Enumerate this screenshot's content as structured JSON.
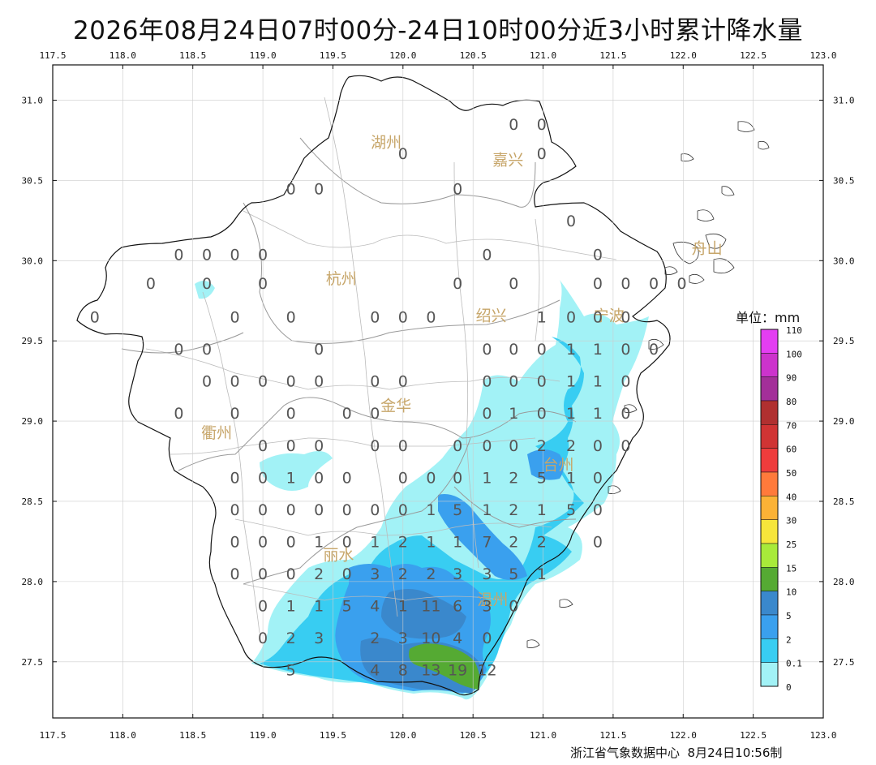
{
  "title": "2026年08月24日07时00分-24日10时00分近3小时累计降水量",
  "legend_title": "单位：mm",
  "footer": "浙江省气象数据中心  8月24日10:56制",
  "axes": {
    "lon_ticks": [
      "117.5",
      "118.0",
      "118.5",
      "119.0",
      "119.5",
      "120.0",
      "120.5",
      "121.0",
      "121.5",
      "122.0",
      "122.5",
      "123.0"
    ],
    "lat_ticks": [
      "31.0",
      "30.5",
      "30.0",
      "29.5",
      "29.0",
      "28.5",
      "28.0",
      "27.5"
    ],
    "lon_range": [
      117.5,
      123.0
    ],
    "lat_range": [
      27.15,
      31.22
    ]
  },
  "legend": {
    "labels": [
      "110",
      "100",
      "90",
      "80",
      "70",
      "60",
      "50",
      "40",
      "30",
      "25",
      "15",
      "10",
      "5",
      "2",
      "0.1",
      "0"
    ],
    "colors": [
      "#e33ef2",
      "#cc33cc",
      "#a32f99",
      "#b03030",
      "#d03434",
      "#ee3c3c",
      "#ff7a3b",
      "#fbb236",
      "#f6e53b",
      "#a8ea3a",
      "#55aa33",
      "#3a88cc",
      "#3aa0ee",
      "#38cdf2",
      "#a2f2f6",
      "#ffffff"
    ]
  },
  "cities": [
    {
      "name": "湖州",
      "lon": 119.88,
      "lat": 30.74
    },
    {
      "name": "嘉兴",
      "lon": 120.75,
      "lat": 30.63
    },
    {
      "name": "舟山",
      "lon": 122.17,
      "lat": 30.08
    },
    {
      "name": "杭州",
      "lon": 119.56,
      "lat": 29.89
    },
    {
      "name": "绍兴",
      "lon": 120.63,
      "lat": 29.66
    },
    {
      "name": "宁波",
      "lon": 121.47,
      "lat": 29.66
    },
    {
      "name": "金华",
      "lon": 119.95,
      "lat": 29.1
    },
    {
      "name": "衢州",
      "lon": 118.67,
      "lat": 28.93
    },
    {
      "name": "台州",
      "lon": 121.11,
      "lat": 28.73
    },
    {
      "name": "丽水",
      "lon": 119.54,
      "lat": 28.17
    },
    {
      "name": "温州",
      "lon": 120.64,
      "lat": 27.89
    }
  ],
  "stations": [
    {
      "v": "0",
      "lon": 120.79,
      "lat": 30.85
    },
    {
      "v": "0",
      "lon": 120.99,
      "lat": 30.85
    },
    {
      "v": "0",
      "lon": 120.0,
      "lat": 30.67
    },
    {
      "v": "0",
      "lon": 120.99,
      "lat": 30.67
    },
    {
      "v": "0",
      "lon": 119.2,
      "lat": 30.45
    },
    {
      "v": "0",
      "lon": 119.4,
      "lat": 30.45
    },
    {
      "v": "0",
      "lon": 120.39,
      "lat": 30.45
    },
    {
      "v": "0",
      "lon": 121.2,
      "lat": 30.25
    },
    {
      "v": "0",
      "lon": 118.4,
      "lat": 30.04
    },
    {
      "v": "0",
      "lon": 118.6,
      "lat": 30.04
    },
    {
      "v": "0",
      "lon": 118.8,
      "lat": 30.04
    },
    {
      "v": "0",
      "lon": 119.0,
      "lat": 30.04
    },
    {
      "v": "0",
      "lon": 120.6,
      "lat": 30.04
    },
    {
      "v": "0",
      "lon": 121.39,
      "lat": 30.04
    },
    {
      "v": "0",
      "lon": 118.2,
      "lat": 29.86
    },
    {
      "v": "0",
      "lon": 118.6,
      "lat": 29.86
    },
    {
      "v": "0",
      "lon": 119.0,
      "lat": 29.86
    },
    {
      "v": "0",
      "lon": 120.39,
      "lat": 29.86
    },
    {
      "v": "0",
      "lon": 120.79,
      "lat": 29.86
    },
    {
      "v": "0",
      "lon": 121.39,
      "lat": 29.86
    },
    {
      "v": "0",
      "lon": 121.59,
      "lat": 29.86
    },
    {
      "v": "0",
      "lon": 121.79,
      "lat": 29.86
    },
    {
      "v": "0",
      "lon": 121.99,
      "lat": 29.86
    },
    {
      "v": "0",
      "lon": 117.8,
      "lat": 29.65
    },
    {
      "v": "0",
      "lon": 118.8,
      "lat": 29.65
    },
    {
      "v": "0",
      "lon": 119.2,
      "lat": 29.65
    },
    {
      "v": "0",
      "lon": 119.8,
      "lat": 29.65
    },
    {
      "v": "0",
      "lon": 120.0,
      "lat": 29.65
    },
    {
      "v": "0",
      "lon": 120.2,
      "lat": 29.65
    },
    {
      "v": "1",
      "lon": 120.99,
      "lat": 29.65
    },
    {
      "v": "0",
      "lon": 121.2,
      "lat": 29.65
    },
    {
      "v": "0",
      "lon": 121.39,
      "lat": 29.65
    },
    {
      "v": "0",
      "lon": 121.59,
      "lat": 29.65
    },
    {
      "v": "0",
      "lon": 118.4,
      "lat": 29.45
    },
    {
      "v": "0",
      "lon": 118.6,
      "lat": 29.45
    },
    {
      "v": "0",
      "lon": 119.4,
      "lat": 29.45
    },
    {
      "v": "0",
      "lon": 120.6,
      "lat": 29.45
    },
    {
      "v": "0",
      "lon": 120.79,
      "lat": 29.45
    },
    {
      "v": "0",
      "lon": 120.99,
      "lat": 29.45
    },
    {
      "v": "1",
      "lon": 121.2,
      "lat": 29.45
    },
    {
      "v": "1",
      "lon": 121.39,
      "lat": 29.45
    },
    {
      "v": "0",
      "lon": 121.59,
      "lat": 29.45
    },
    {
      "v": "0",
      "lon": 121.79,
      "lat": 29.45
    },
    {
      "v": "0",
      "lon": 118.6,
      "lat": 29.25
    },
    {
      "v": "0",
      "lon": 118.8,
      "lat": 29.25
    },
    {
      "v": "0",
      "lon": 119.0,
      "lat": 29.25
    },
    {
      "v": "0",
      "lon": 119.2,
      "lat": 29.25
    },
    {
      "v": "0",
      "lon": 119.4,
      "lat": 29.25
    },
    {
      "v": "0",
      "lon": 119.8,
      "lat": 29.25
    },
    {
      "v": "0",
      "lon": 120.0,
      "lat": 29.25
    },
    {
      "v": "0",
      "lon": 120.6,
      "lat": 29.25
    },
    {
      "v": "0",
      "lon": 120.79,
      "lat": 29.25
    },
    {
      "v": "0",
      "lon": 120.99,
      "lat": 29.25
    },
    {
      "v": "1",
      "lon": 121.2,
      "lat": 29.25
    },
    {
      "v": "1",
      "lon": 121.39,
      "lat": 29.25
    },
    {
      "v": "0",
      "lon": 121.59,
      "lat": 29.25
    },
    {
      "v": "0",
      "lon": 118.4,
      "lat": 29.05
    },
    {
      "v": "0",
      "lon": 118.8,
      "lat": 29.05
    },
    {
      "v": "0",
      "lon": 119.2,
      "lat": 29.05
    },
    {
      "v": "0",
      "lon": 119.6,
      "lat": 29.05
    },
    {
      "v": "0",
      "lon": 119.8,
      "lat": 29.05
    },
    {
      "v": "0",
      "lon": 120.6,
      "lat": 29.05
    },
    {
      "v": "1",
      "lon": 120.79,
      "lat": 29.05
    },
    {
      "v": "0",
      "lon": 120.99,
      "lat": 29.05
    },
    {
      "v": "1",
      "lon": 121.2,
      "lat": 29.05
    },
    {
      "v": "1",
      "lon": 121.39,
      "lat": 29.05
    },
    {
      "v": "0",
      "lon": 121.59,
      "lat": 29.05
    },
    {
      "v": "0",
      "lon": 119.0,
      "lat": 28.85
    },
    {
      "v": "0",
      "lon": 119.2,
      "lat": 28.85
    },
    {
      "v": "0",
      "lon": 119.4,
      "lat": 28.85
    },
    {
      "v": "0",
      "lon": 119.8,
      "lat": 28.85
    },
    {
      "v": "0",
      "lon": 120.0,
      "lat": 28.85
    },
    {
      "v": "0",
      "lon": 120.39,
      "lat": 28.85
    },
    {
      "v": "0",
      "lon": 120.6,
      "lat": 28.85
    },
    {
      "v": "0",
      "lon": 120.79,
      "lat": 28.85
    },
    {
      "v": "2",
      "lon": 120.99,
      "lat": 28.85
    },
    {
      "v": "2",
      "lon": 121.2,
      "lat": 28.85
    },
    {
      "v": "0",
      "lon": 121.39,
      "lat": 28.85
    },
    {
      "v": "0",
      "lon": 121.59,
      "lat": 28.85
    },
    {
      "v": "0",
      "lon": 118.8,
      "lat": 28.65
    },
    {
      "v": "0",
      "lon": 119.0,
      "lat": 28.65
    },
    {
      "v": "1",
      "lon": 119.2,
      "lat": 28.65
    },
    {
      "v": "0",
      "lon": 119.4,
      "lat": 28.65
    },
    {
      "v": "0",
      "lon": 119.6,
      "lat": 28.65
    },
    {
      "v": "0",
      "lon": 120.0,
      "lat": 28.65
    },
    {
      "v": "0",
      "lon": 120.2,
      "lat": 28.65
    },
    {
      "v": "0",
      "lon": 120.39,
      "lat": 28.65
    },
    {
      "v": "1",
      "lon": 120.6,
      "lat": 28.65
    },
    {
      "v": "2",
      "lon": 120.79,
      "lat": 28.65
    },
    {
      "v": "5",
      "lon": 120.99,
      "lat": 28.65
    },
    {
      "v": "1",
      "lon": 121.2,
      "lat": 28.65
    },
    {
      "v": "0",
      "lon": 121.39,
      "lat": 28.65
    },
    {
      "v": "0",
      "lon": 118.8,
      "lat": 28.45
    },
    {
      "v": "0",
      "lon": 119.0,
      "lat": 28.45
    },
    {
      "v": "0",
      "lon": 119.2,
      "lat": 28.45
    },
    {
      "v": "0",
      "lon": 119.4,
      "lat": 28.45
    },
    {
      "v": "0",
      "lon": 119.6,
      "lat": 28.45
    },
    {
      "v": "0",
      "lon": 119.8,
      "lat": 28.45
    },
    {
      "v": "0",
      "lon": 120.0,
      "lat": 28.45
    },
    {
      "v": "1",
      "lon": 120.2,
      "lat": 28.45
    },
    {
      "v": "5",
      "lon": 120.39,
      "lat": 28.45
    },
    {
      "v": "1",
      "lon": 120.6,
      "lat": 28.45
    },
    {
      "v": "2",
      "lon": 120.79,
      "lat": 28.45
    },
    {
      "v": "1",
      "lon": 120.99,
      "lat": 28.45
    },
    {
      "v": "5",
      "lon": 121.2,
      "lat": 28.45
    },
    {
      "v": "0",
      "lon": 121.39,
      "lat": 28.45
    },
    {
      "v": "0",
      "lon": 118.8,
      "lat": 28.25
    },
    {
      "v": "0",
      "lon": 119.0,
      "lat": 28.25
    },
    {
      "v": "0",
      "lon": 119.2,
      "lat": 28.25
    },
    {
      "v": "1",
      "lon": 119.4,
      "lat": 28.25
    },
    {
      "v": "0",
      "lon": 119.6,
      "lat": 28.25
    },
    {
      "v": "1",
      "lon": 119.8,
      "lat": 28.25
    },
    {
      "v": "2",
      "lon": 120.0,
      "lat": 28.25
    },
    {
      "v": "1",
      "lon": 120.2,
      "lat": 28.25
    },
    {
      "v": "1",
      "lon": 120.39,
      "lat": 28.25
    },
    {
      "v": "7",
      "lon": 120.6,
      "lat": 28.25
    },
    {
      "v": "2",
      "lon": 120.79,
      "lat": 28.25
    },
    {
      "v": "2",
      "lon": 120.99,
      "lat": 28.25
    },
    {
      "v": "0",
      "lon": 121.39,
      "lat": 28.25
    },
    {
      "v": "0",
      "lon": 118.8,
      "lat": 28.05
    },
    {
      "v": "0",
      "lon": 119.0,
      "lat": 28.05
    },
    {
      "v": "0",
      "lon": 119.2,
      "lat": 28.05
    },
    {
      "v": "2",
      "lon": 119.4,
      "lat": 28.05
    },
    {
      "v": "0",
      "lon": 119.6,
      "lat": 28.05
    },
    {
      "v": "3",
      "lon": 119.8,
      "lat": 28.05
    },
    {
      "v": "2",
      "lon": 120.0,
      "lat": 28.05
    },
    {
      "v": "2",
      "lon": 120.2,
      "lat": 28.05
    },
    {
      "v": "3",
      "lon": 120.39,
      "lat": 28.05
    },
    {
      "v": "3",
      "lon": 120.6,
      "lat": 28.05
    },
    {
      "v": "5",
      "lon": 120.79,
      "lat": 28.05
    },
    {
      "v": "1",
      "lon": 120.99,
      "lat": 28.05
    },
    {
      "v": "0",
      "lon": 119.0,
      "lat": 27.85
    },
    {
      "v": "1",
      "lon": 119.2,
      "lat": 27.85
    },
    {
      "v": "1",
      "lon": 119.4,
      "lat": 27.85
    },
    {
      "v": "5",
      "lon": 119.6,
      "lat": 27.85
    },
    {
      "v": "4",
      "lon": 119.8,
      "lat": 27.85
    },
    {
      "v": "1",
      "lon": 120.0,
      "lat": 27.85
    },
    {
      "v": "11",
      "lon": 120.2,
      "lat": 27.85
    },
    {
      "v": "6",
      "lon": 120.39,
      "lat": 27.85
    },
    {
      "v": "3",
      "lon": 120.6,
      "lat": 27.85
    },
    {
      "v": "0",
      "lon": 120.79,
      "lat": 27.85
    },
    {
      "v": "0",
      "lon": 119.0,
      "lat": 27.65
    },
    {
      "v": "2",
      "lon": 119.2,
      "lat": 27.65
    },
    {
      "v": "3",
      "lon": 119.4,
      "lat": 27.65
    },
    {
      "v": "2",
      "lon": 119.8,
      "lat": 27.65
    },
    {
      "v": "3",
      "lon": 120.0,
      "lat": 27.65
    },
    {
      "v": "10",
      "lon": 120.2,
      "lat": 27.65
    },
    {
      "v": "4",
      "lon": 120.39,
      "lat": 27.65
    },
    {
      "v": "0",
      "lon": 120.6,
      "lat": 27.65
    },
    {
      "v": "5",
      "lon": 119.2,
      "lat": 27.45
    },
    {
      "v": "4",
      "lon": 119.8,
      "lat": 27.45
    },
    {
      "v": "8",
      "lon": 120.0,
      "lat": 27.45
    },
    {
      "v": "13",
      "lon": 120.2,
      "lat": 27.45
    },
    {
      "v": "19",
      "lon": 120.39,
      "lat": 27.45
    },
    {
      "v": "12",
      "lon": 120.6,
      "lat": 27.45
    }
  ]
}
